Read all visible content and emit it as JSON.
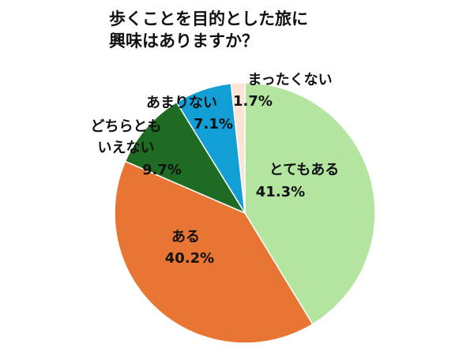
{
  "chart_data": {
    "type": "pie",
    "title": [
      "歩くことを目的とした旅に",
      "興味はありますか？"
    ],
    "categories": [
      "とてもある",
      "ある",
      "どちらともいえない",
      "あまりない",
      "まったくない"
    ],
    "values": [
      41.3,
      40.2,
      9.7,
      7.1,
      1.7
    ],
    "value_labels": [
      "41.3%",
      "40.2%",
      "9.7%",
      "7.1%",
      "1.7%"
    ],
    "colors": [
      "#b3e5a1",
      "#e87533",
      "#1e6b23",
      "#129fd6",
      "#fbe3d6"
    ]
  }
}
